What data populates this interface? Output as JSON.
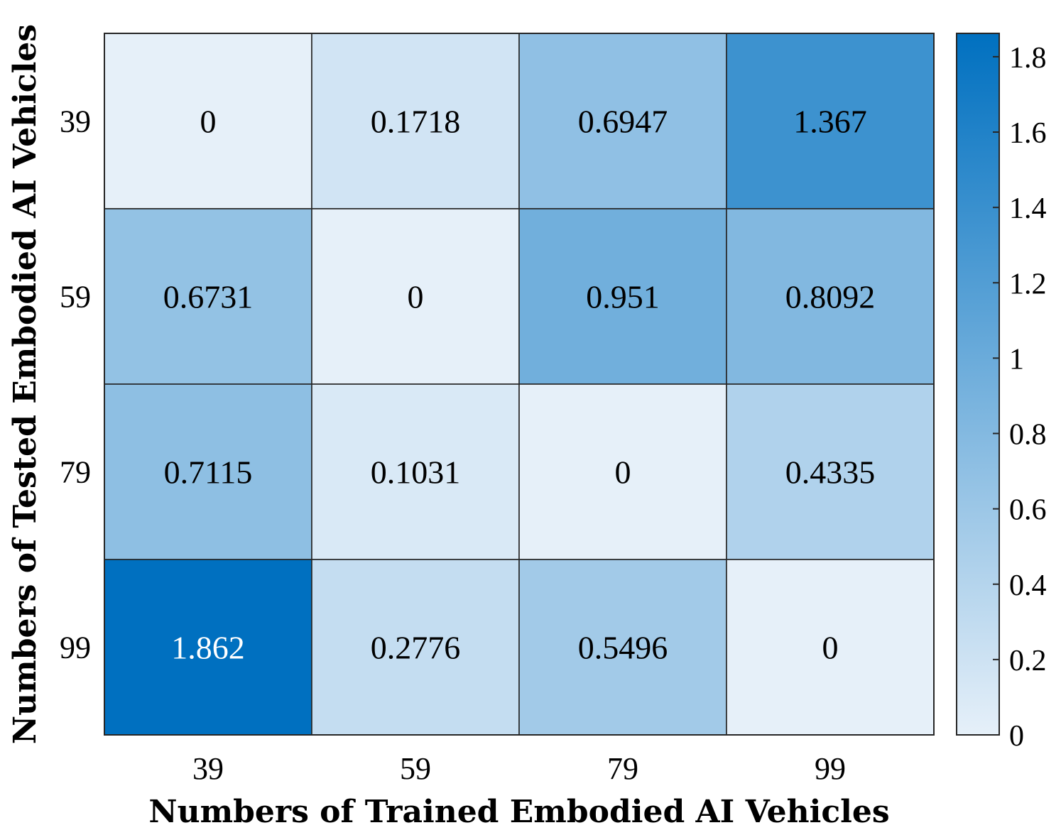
{
  "chart_data": {
    "type": "heatmap",
    "xlabel": "Numbers of Trained Embodied AI Vehicles",
    "ylabel": "Numbers of Tested Embodied AI Vehicles",
    "x_categories": [
      "39",
      "59",
      "79",
      "99"
    ],
    "y_categories": [
      "39",
      "59",
      "79",
      "99"
    ],
    "values": [
      [
        0,
        0.1718,
        0.6947,
        1.367
      ],
      [
        0.6731,
        0,
        0.951,
        0.8092
      ],
      [
        0.7115,
        0.1031,
        0,
        0.4335
      ],
      [
        1.862,
        0.2776,
        0.5496,
        0
      ]
    ],
    "value_labels": [
      [
        "0",
        "0.1718",
        "0.6947",
        "1.367"
      ],
      [
        "0.6731",
        "0",
        "0.951",
        "0.8092"
      ],
      [
        "0.7115",
        "0.1031",
        "0",
        "0.4335"
      ],
      [
        "1.862",
        "0.2776",
        "0.5496",
        "0"
      ]
    ],
    "colorbar": {
      "range": [
        0,
        1.862
      ],
      "ticks": [
        0,
        0.2,
        0.4,
        0.6,
        0.8,
        1,
        1.2,
        1.4,
        1.6,
        1.8
      ],
      "tick_labels": [
        "0",
        "0.2",
        "0.4",
        "0.6",
        "0.8",
        "1",
        "1.2",
        "1.4",
        "1.6",
        "1.8"
      ],
      "color_low": "#e6f0f9",
      "color_high": "#0070c0"
    },
    "grid": false
  }
}
